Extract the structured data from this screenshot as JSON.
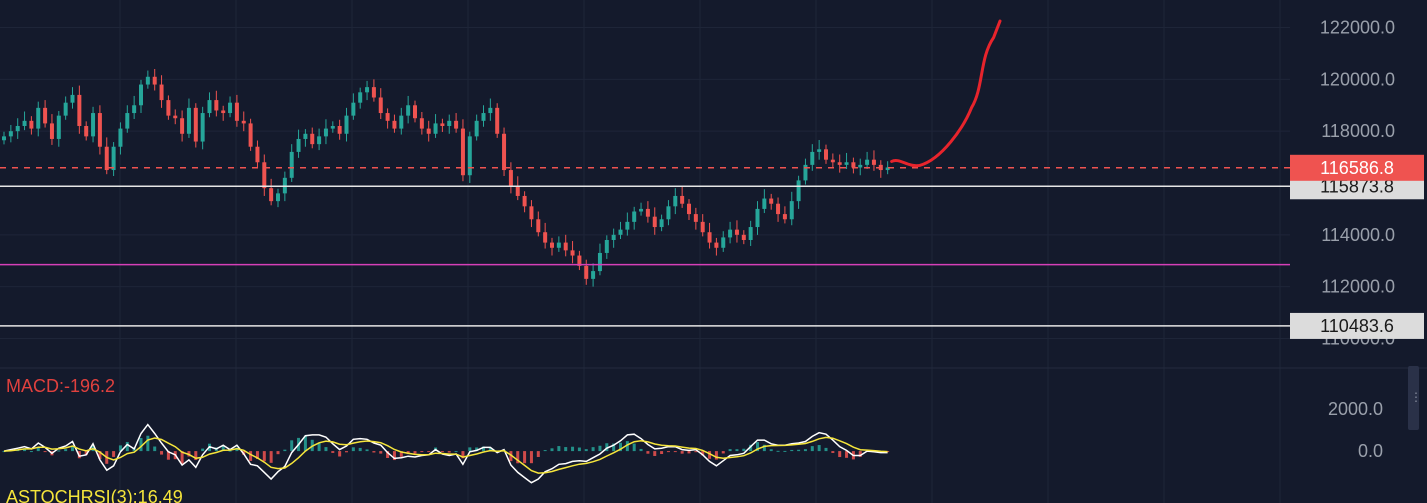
{
  "colors": {
    "background": "#141a2c",
    "grid": "#1e2538",
    "up_candle": "#26a69a",
    "down_candle": "#ef5350",
    "current_price": "#ef5350",
    "support_line": "#e6e6e6",
    "magenta_line": "#d63fb8",
    "drawn_path": "#e8242c",
    "macd_line": "#ffffff",
    "signal_line": "#f5e53b",
    "indicator_label": "#e0413e",
    "stoch_label": "#f5e53b"
  },
  "chart_data": {
    "type": "candlestick",
    "price_axis": {
      "ticks": [
        "122000.0",
        "120000.0",
        "118000.0",
        "114000.0",
        "112000.0",
        "110000.0"
      ],
      "range": [
        109400,
        122600
      ]
    },
    "current_price": {
      "value": 116586.8,
      "label": "116586.8"
    },
    "horizontal_lines": [
      {
        "name": "support-upper",
        "value": 115873.8,
        "label": "115873.8",
        "color": "#e6e6e6"
      },
      {
        "name": "magenta-level",
        "value": 112850,
        "label": "",
        "color": "#d63fb8"
      },
      {
        "name": "support-lower",
        "value": 110483.6,
        "label": "110483.6",
        "color": "#e6e6e6"
      }
    ],
    "series": [
      {
        "name": "",
        "values": [
          117800,
          118000,
          118200,
          118400,
          118100,
          118900,
          118300,
          117700,
          118600,
          119100,
          119400,
          118200,
          117800,
          118700,
          117400,
          116500,
          117400,
          118100,
          118700,
          119000,
          119800,
          120100,
          119800,
          119200,
          118600,
          118500,
          117900,
          118900,
          117600,
          118700,
          119200,
          118800,
          118700,
          119100,
          118400,
          118300,
          117400,
          116800,
          115800,
          115300,
          115600,
          116200,
          117200,
          117700,
          117900,
          117500,
          117800,
          118100,
          118200,
          117900,
          118600,
          119100,
          119500,
          119700,
          119300,
          118700,
          118400,
          118100,
          118600,
          119000,
          118500,
          118100,
          117900,
          118300,
          118200,
          118400,
          118100,
          116300,
          117800,
          118400,
          118700,
          118900,
          117900,
          116500,
          115900,
          115500,
          115100,
          114600,
          114100,
          113700,
          113500,
          113700,
          113400,
          113200,
          112800,
          112300,
          112600,
          113300,
          113800,
          114000,
          114200,
          114500,
          114900,
          115000,
          114700,
          114300,
          114600,
          115100,
          115500,
          115200,
          114800,
          114500,
          114100,
          113700,
          113500,
          113900,
          114200,
          114000,
          113800,
          114300,
          115000,
          115400,
          115200,
          114800,
          114600,
          115300,
          116100,
          116700,
          117200,
          117300,
          116900,
          116800,
          116700,
          116800,
          116600,
          116700,
          116900,
          116700,
          116500,
          116600
        ]
      }
    ],
    "macd": {
      "label": "MACD:-196.2",
      "axis_ticks": [
        "2000.0",
        "0.0"
      ],
      "range": [
        -900,
        3100
      ]
    },
    "stoch_rsi": {
      "label": "ASTOCHRSI(3):16.49"
    },
    "annotations": [
      {
        "type": "freehand-projection",
        "color": "#e8242c"
      }
    ]
  }
}
